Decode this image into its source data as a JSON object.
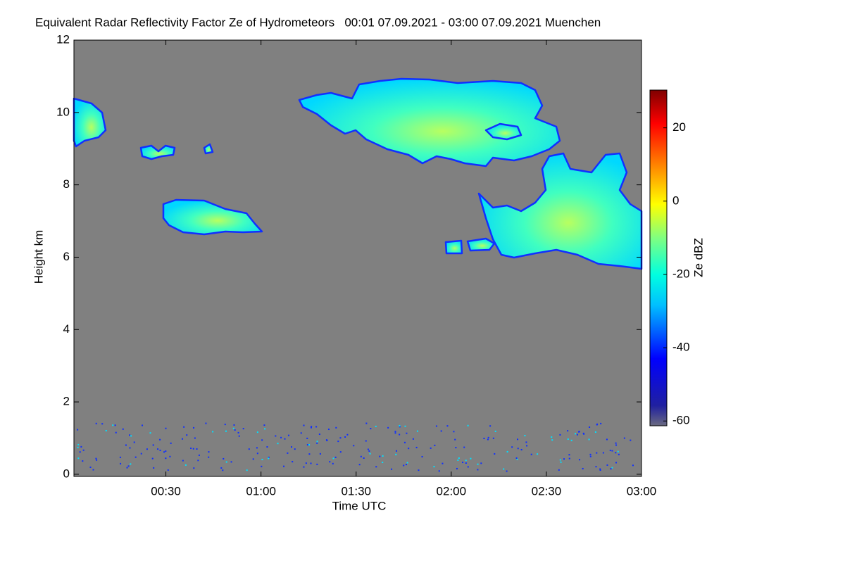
{
  "chart_data": {
    "type": "heatmap",
    "title": "Equivalent Radar Reflectivity Factor Ze of Hydrometeors   00:01 07.09.2021 - 03:00 07.09.2021 Muenchen",
    "x_label": "Time UTC",
    "y_label": "Height km",
    "xlim": [
      1,
      180
    ],
    "xticks": [
      {
        "value": 30,
        "label": "00:30"
      },
      {
        "value": 60,
        "label": "01:00"
      },
      {
        "value": 90,
        "label": "01:30"
      },
      {
        "value": 120,
        "label": "02:00"
      },
      {
        "value": 150,
        "label": "02:30"
      },
      {
        "value": 180,
        "label": "03:00"
      }
    ],
    "ylim": [
      -0.06,
      12
    ],
    "yticks": [
      0,
      2,
      4,
      6,
      8,
      10,
      12
    ],
    "background_color": "#808080",
    "colorbar": {
      "label": "Ze dBZ",
      "clim": [
        -61.3,
        30.3
      ],
      "ticks": [
        -60,
        -40,
        -20,
        0,
        20
      ]
    }
  }
}
